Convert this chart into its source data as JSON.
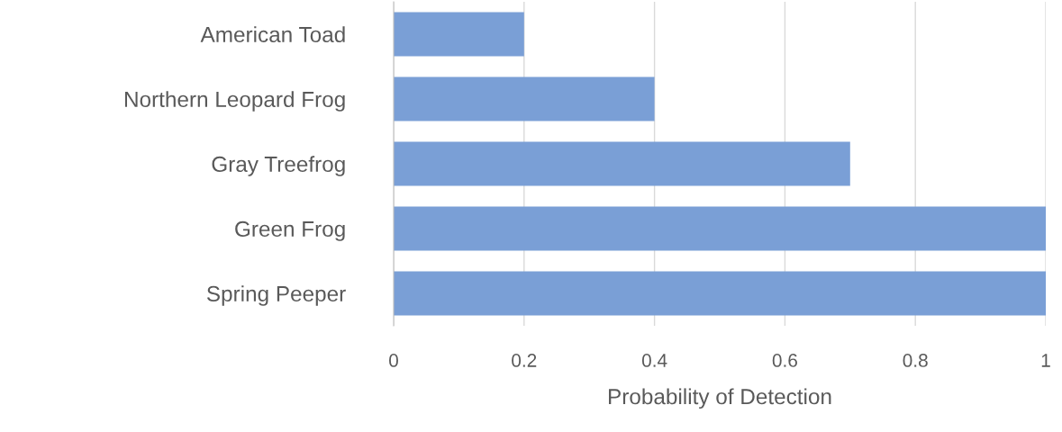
{
  "chart_data": {
    "type": "bar",
    "orientation": "horizontal",
    "xlabel": "Probability of Detection",
    "categories": [
      "American Toad",
      "Northern Leopard Frog",
      "Gray Treefrog",
      "Green Frog",
      "Spring Peeper"
    ],
    "values": [
      0.2,
      0.4,
      0.7,
      1,
      1
    ],
    "color": "#7a9fd6",
    "xlim": [
      0,
      1
    ],
    "xticks": [
      0,
      0.2,
      0.4,
      0.6,
      0.8,
      1
    ],
    "grid": "x",
    "legend": false
  }
}
